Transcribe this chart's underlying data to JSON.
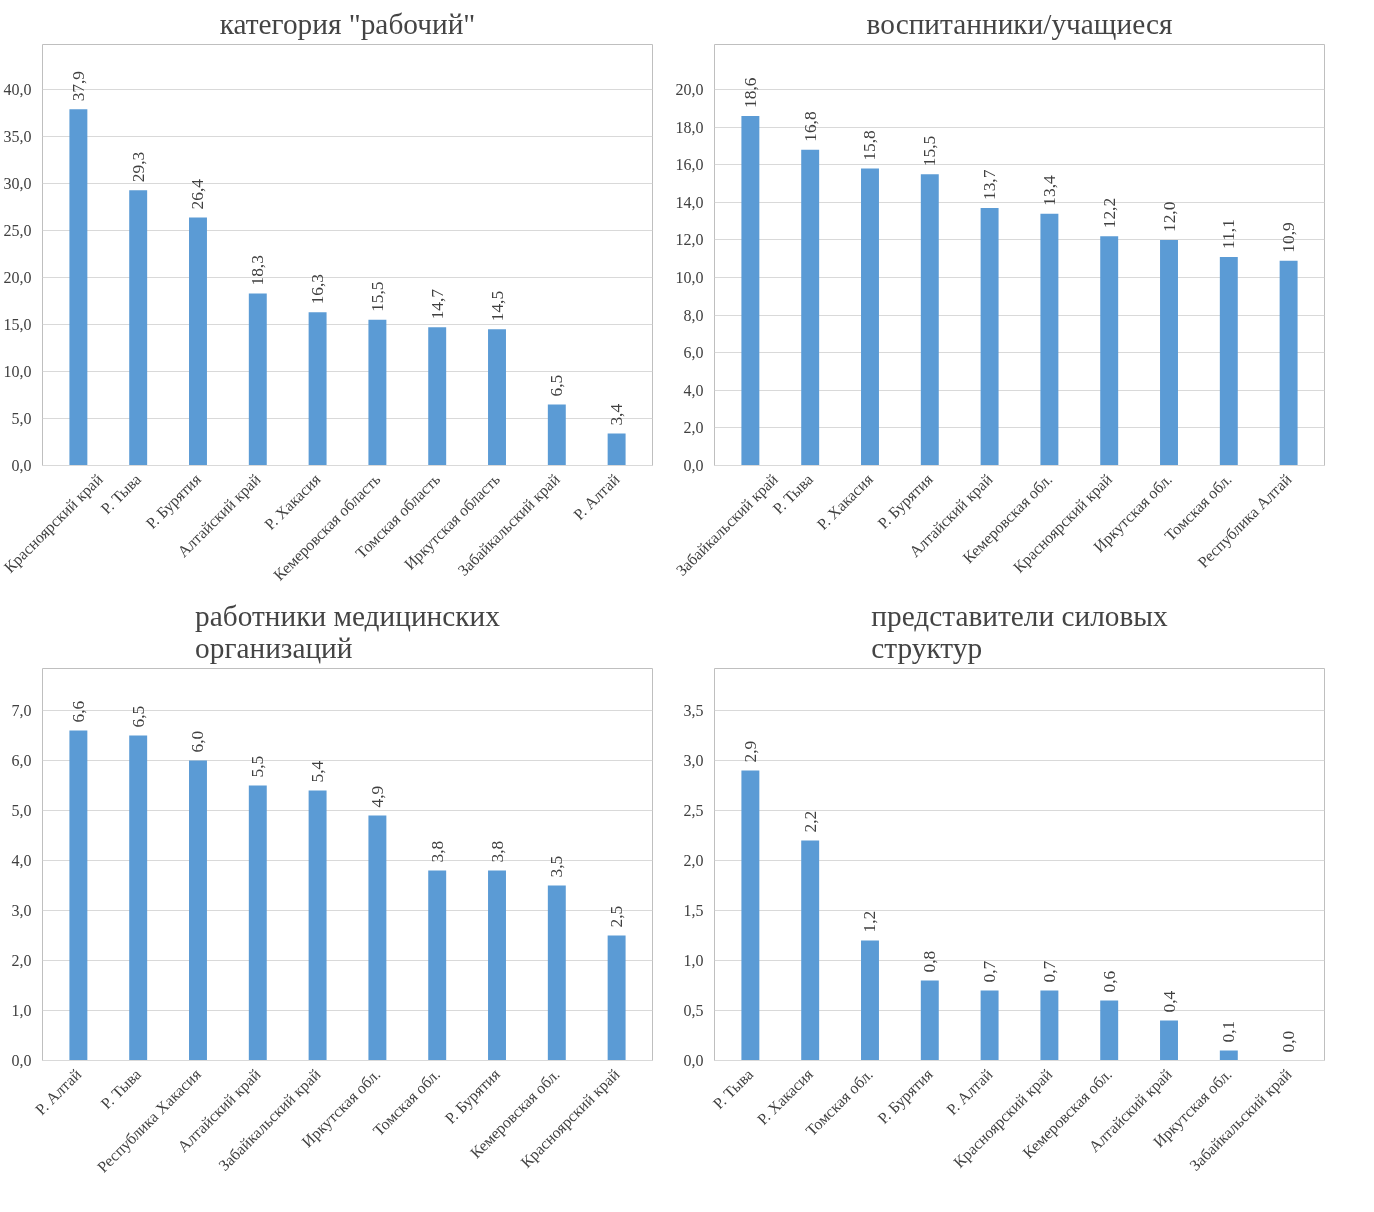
{
  "chart_data": [
    {
      "type": "bar",
      "title": "категория \"рабочий\"",
      "categories": [
        "Красноярский край",
        "Р. Тыва",
        "Р. Бурятия",
        "Алтайский край",
        "Р. Хакасия",
        "Кемеровская область",
        "Томская область",
        "Иркутская область",
        "Забайкальский край",
        "Р. Алтай"
      ],
      "color": "#5b9bd5",
      "values": [
        37.9,
        29.3,
        26.4,
        18.3,
        16.3,
        15.5,
        14.7,
        14.5,
        6.5,
        3.4
      ],
      "value_labels": [
        "37,9",
        "29,3",
        "26,4",
        "18,3",
        "16,3",
        "15,5",
        "14,7",
        "14,5",
        "6,5",
        "3,4"
      ],
      "ylim": [
        0,
        40
      ],
      "yticks": [
        {
          "value": 0,
          "label": "0,0"
        },
        {
          "value": 5,
          "label": "5,0"
        },
        {
          "value": 10,
          "label": "10,0"
        },
        {
          "value": 15,
          "label": "15,0"
        },
        {
          "value": 20,
          "label": "20,0"
        },
        {
          "value": 25,
          "label": "25,0"
        },
        {
          "value": 30,
          "label": "30,0"
        },
        {
          "value": 35,
          "label": "35,0"
        },
        {
          "value": 40,
          "label": "40,0"
        }
      ],
      "grid": "y"
    },
    {
      "type": "bar",
      "title": "воспитанники/учащиеся",
      "categories": [
        "Забайкальский край",
        "Р. Тыва",
        "Р. Хакасия",
        "Р. Бурятия",
        "Алтайский край",
        "Кемеровская обл.",
        "Красноярский край",
        "Иркутская обл.",
        "Томская обл.",
        "Республика Алтай"
      ],
      "color": "#5b9bd5",
      "values": [
        18.6,
        16.8,
        15.8,
        15.5,
        13.7,
        13.4,
        12.2,
        12.0,
        11.1,
        10.9
      ],
      "value_labels": [
        "18,6",
        "16,8",
        "15,8",
        "15,5",
        "13,7",
        "13,4",
        "12,2",
        "12,0",
        "11,1",
        "10,9"
      ],
      "ylim": [
        0,
        20
      ],
      "yticks": [
        {
          "value": 0,
          "label": "0,0"
        },
        {
          "value": 2,
          "label": "2,0"
        },
        {
          "value": 4,
          "label": "4,0"
        },
        {
          "value": 6,
          "label": "6,0"
        },
        {
          "value": 8,
          "label": "8,0"
        },
        {
          "value": 10,
          "label": "10,0"
        },
        {
          "value": 12,
          "label": "12,0"
        },
        {
          "value": 14,
          "label": "14,0"
        },
        {
          "value": 16,
          "label": "16,0"
        },
        {
          "value": 18,
          "label": "18,0"
        },
        {
          "value": 20,
          "label": "20,0"
        }
      ],
      "grid": "y"
    },
    {
      "type": "bar",
      "title": "работники медицинских организаций",
      "categories": [
        "Р. Алтай",
        "Р. Тыва",
        "Республика Хакасия",
        "Алтайский край",
        "Забайкальский край",
        "Иркутская обл.",
        "Томская обл.",
        "Р. Бурятия",
        "Кемеровская обл.",
        "Красноярский край"
      ],
      "color": "#5b9bd5",
      "values": [
        6.6,
        6.5,
        6.0,
        5.5,
        5.4,
        4.9,
        3.8,
        3.8,
        3.5,
        2.5
      ],
      "value_labels": [
        "6,6",
        "6,5",
        "6,0",
        "5,5",
        "5,4",
        "4,9",
        "3,8",
        "3,8",
        "3,5",
        "2,5"
      ],
      "ylim": [
        0,
        7
      ],
      "yticks": [
        {
          "value": 0,
          "label": "0,0"
        },
        {
          "value": 1,
          "label": "1,0"
        },
        {
          "value": 2,
          "label": "2,0"
        },
        {
          "value": 3,
          "label": "3,0"
        },
        {
          "value": 4,
          "label": "4,0"
        },
        {
          "value": 5,
          "label": "5,0"
        },
        {
          "value": 6,
          "label": "6,0"
        },
        {
          "value": 7,
          "label": "7,0"
        }
      ],
      "grid": "y"
    },
    {
      "type": "bar",
      "title": "представители силовых структур",
      "categories": [
        "Р. Тыва",
        "Р. Хакасия",
        "Томская обл.",
        "Р. Бурятия",
        "Р. Алтай",
        "Красноярский край",
        "Кемеровская обл.",
        "Алтайский край",
        "Иркутская обл.",
        "Забайкальский край"
      ],
      "color": "#5b9bd5",
      "values": [
        2.9,
        2.2,
        1.2,
        0.8,
        0.7,
        0.7,
        0.6,
        0.4,
        0.1,
        0.0
      ],
      "value_labels": [
        "2,9",
        "2,2",
        "1,2",
        "0,8",
        "0,7",
        "0,7",
        "0,6",
        "0,4",
        "0,1",
        "0,0"
      ],
      "ylim": [
        0,
        3.5
      ],
      "yticks": [
        {
          "value": 0,
          "label": "0,0"
        },
        {
          "value": 0.5,
          "label": "0,5"
        },
        {
          "value": 1,
          "label": "1,0"
        },
        {
          "value": 1.5,
          "label": "1,5"
        },
        {
          "value": 2,
          "label": "2,0"
        },
        {
          "value": 2.5,
          "label": "2,5"
        },
        {
          "value": 3,
          "label": "3,0"
        },
        {
          "value": 3.5,
          "label": "3,5"
        }
      ],
      "grid": "y"
    }
  ]
}
